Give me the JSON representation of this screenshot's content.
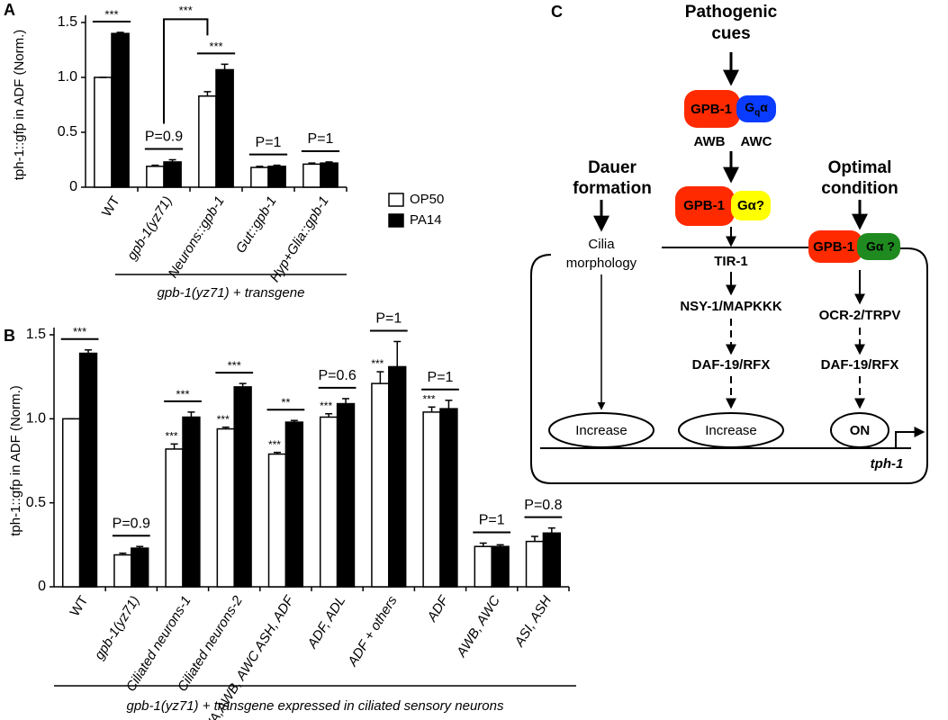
{
  "chart_data": [
    {
      "type": "bar",
      "panel": "A",
      "ylabel": "tph-1::gfp in ADF (Norm.)",
      "categories": [
        "WT",
        "gpb-1(yz71)",
        "Neurons::gpb-1",
        "Gut::gpb-1",
        "Hyp+Glia::gpb-1"
      ],
      "series": [
        {
          "name": "OP50",
          "color": "#ffffff",
          "values": [
            1.0,
            0.19,
            0.83,
            0.18,
            0.21
          ],
          "errors": [
            0,
            0.01,
            0.04,
            0.01,
            0.01
          ]
        },
        {
          "name": "PA14",
          "color": "#000000",
          "values": [
            1.4,
            0.23,
            1.07,
            0.19,
            0.22
          ],
          "errors": [
            0.01,
            0.02,
            0.05,
            0.01,
            0.01
          ]
        }
      ],
      "ylim": [
        0,
        1.5
      ],
      "yticks": [
        0,
        0.5,
        {
          "value": 1,
          "label": "1.0"
        },
        1.5
      ],
      "pair_labels": [
        "***",
        "P=0.9",
        "***",
        "P=1",
        "P=1"
      ],
      "bracket_label": "***",
      "group_label": "gpb-1(yz71) + transgene"
    },
    {
      "type": "bar",
      "panel": "B",
      "ylabel": "tph-1::gfp in ADF (Norm.)",
      "categories": [
        "WT",
        "gpb-1(yz71)",
        "Ciliated neurons-1",
        "Ciliated neurons-2",
        "AWA,AWB, AWC ASH, ADF",
        "ADF, ADL",
        "ADF + others",
        "ADF",
        "AWB, AWC",
        "ASI, ASH"
      ],
      "series": [
        {
          "color": "#ffffff",
          "values": [
            1.0,
            0.19,
            0.82,
            0.94,
            0.79,
            1.01,
            1.21,
            1.04,
            0.24,
            0.27
          ],
          "errors": [
            0,
            0.01,
            0.03,
            0.01,
            0.01,
            0.02,
            0.07,
            0.03,
            0.02,
            0.03
          ]
        },
        {
          "color": "#000000",
          "values": [
            1.39,
            0.23,
            1.01,
            1.19,
            0.98,
            1.09,
            1.31,
            1.06,
            0.24,
            0.32
          ],
          "errors": [
            0.02,
            0.01,
            0.03,
            0.02,
            0.01,
            0.03,
            0.15,
            0.05,
            0.01,
            0.03
          ]
        }
      ],
      "ylim": [
        0,
        1.5
      ],
      "yticks": [
        0,
        0.5,
        {
          "value": 1,
          "label": "1.0"
        },
        1.5
      ],
      "pair_labels": [
        "***",
        "P=0.9",
        "***",
        "***",
        "**",
        "P=0.6",
        "P=1",
        "P=1",
        "P=1",
        "P=0.8"
      ],
      "first_series_labels": [
        null,
        null,
        "***",
        "***",
        "***",
        "***",
        "***",
        "***",
        null,
        null
      ],
      "group_label": "gpb-1(yz71) + transgene expressed in ciliated sensory neurons"
    }
  ],
  "diagram": {
    "panel": "C",
    "top_input": [
      "Pathogenic",
      "cues"
    ],
    "gpb1_a": "GPB-1",
    "gq": {
      "g": "G",
      "sub": "q",
      "alpha": "α"
    },
    "awb": "AWB",
    "awc": "AWC",
    "gpb1_b": "GPB-1",
    "ga_b": "Gα?",
    "dauer": [
      "Dauer",
      "formation"
    ],
    "optimal": [
      "Optimal",
      "condition"
    ],
    "cilia": [
      "Cilia",
      "morphology"
    ],
    "gpb1_c": "GPB-1",
    "ga_c": "Gα ?",
    "tir": "TIR-1",
    "nsy": "NSY-1/MAPKKK",
    "ocr": "OCR-2/TRPV",
    "daf_mid": "DAF-19/RFX",
    "daf_right": "DAF-19/RFX",
    "increase_left": "Increase",
    "increase_mid": "Increase",
    "on": "ON",
    "gene": "tph-1"
  }
}
